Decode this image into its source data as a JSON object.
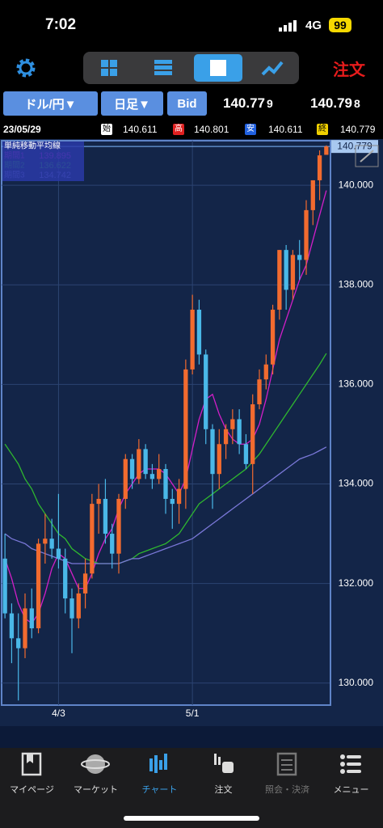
{
  "status_bar": {
    "time": "7:02",
    "network": "4G",
    "battery": "99"
  },
  "toolbar": {
    "order_button": "注文"
  },
  "selectors": {
    "pair": "ドル/円▼",
    "timeframe": "日足▼",
    "price_side": "Bid"
  },
  "quote": {
    "bid": {
      "main": "140.77",
      "pip": "9"
    },
    "ask": {
      "main": "140.79",
      "pip": "8"
    }
  },
  "info_row": {
    "date": "23/05/29",
    "open_label": "始",
    "high_label": "高",
    "low_label": "安",
    "close_label": "終"
  },
  "chart_data": {
    "type": "candlestick",
    "legend_title": "単純移動平均線",
    "categories": [
      null,
      null,
      null,
      null,
      null,
      null,
      null,
      null,
      "4/3",
      null,
      null,
      null,
      null,
      null,
      null,
      null,
      null,
      null,
      null,
      null,
      null,
      null,
      null,
      null,
      null,
      null,
      null,
      null,
      "5/1",
      null,
      null,
      null,
      null,
      null,
      null,
      null,
      null,
      null,
      null,
      null,
      null,
      null,
      null,
      null,
      null,
      null,
      null,
      null,
      null
    ],
    "open": [
      132.5,
      131.4,
      130.9,
      130.7,
      131.5,
      131.1,
      132.8,
      132.9,
      132.7,
      132.5,
      131.7,
      131.3,
      131.8,
      132.2,
      133.6,
      133.7,
      133.0,
      132.6,
      133.7,
      134.5,
      134.1,
      134.7,
      134.2,
      134.1,
      134.3,
      133.7,
      133.6,
      133.9,
      136.3,
      137.5,
      136.6,
      135.1,
      134.2,
      134.8,
      135.1,
      135.3,
      134.8,
      134.4,
      135.6,
      136.1,
      136.4,
      137.5,
      138.7,
      137.9,
      138.6,
      138.5,
      139.5,
      140.1,
      140.611
    ],
    "high": [
      133.0,
      131.6,
      131.4,
      131.8,
      131.9,
      132.9,
      133.4,
      133.3,
      133.8,
      132.7,
      131.9,
      132.0,
      132.5,
      133.8,
      134.0,
      134.1,
      133.2,
      133.8,
      134.6,
      134.6,
      134.9,
      134.8,
      134.4,
      134.6,
      134.4,
      133.9,
      134.1,
      136.5,
      137.8,
      137.7,
      136.7,
      135.2,
      135.1,
      135.2,
      135.5,
      135.5,
      135.0,
      135.8,
      136.3,
      136.6,
      137.6,
      138.7,
      138.8,
      138.7,
      138.9,
      139.7,
      140.1,
      140.7,
      140.801
    ],
    "low": [
      131.3,
      130.4,
      129.65,
      130.5,
      130.9,
      131.0,
      132.4,
      132.5,
      132.3,
      131.4,
      130.6,
      131.1,
      131.5,
      132.1,
      133.0,
      132.8,
      132.3,
      132.2,
      133.5,
      133.9,
      134.0,
      134.1,
      133.9,
      134.0,
      133.4,
      133.1,
      133.2,
      133.5,
      136.2,
      136.4,
      134.8,
      133.5,
      133.9,
      134.5,
      134.8,
      134.6,
      134.3,
      133.8,
      135.5,
      135.9,
      136.2,
      137.3,
      137.5,
      137.7,
      138.1,
      138.2,
      139.2,
      139.7,
      140.611
    ],
    "close": [
      131.4,
      130.9,
      130.7,
      131.5,
      131.1,
      132.8,
      132.9,
      132.7,
      132.5,
      131.7,
      131.3,
      131.8,
      132.2,
      133.6,
      133.7,
      133.0,
      132.6,
      133.7,
      134.5,
      134.1,
      134.7,
      134.2,
      134.1,
      134.3,
      133.7,
      133.6,
      133.9,
      136.3,
      137.5,
      136.6,
      135.1,
      134.2,
      134.8,
      135.1,
      135.3,
      134.8,
      134.4,
      135.6,
      136.1,
      136.4,
      137.5,
      138.7,
      137.9,
      138.6,
      138.5,
      139.5,
      140.1,
      140.6,
      140.779
    ],
    "up_color": "#f26b2f",
    "down_color": "#4ab8e8",
    "series": [
      {
        "name": "期間1",
        "color": "#d21fc8",
        "values": [
          132.5,
          132.1,
          131.6,
          131.3,
          131.2,
          131.4,
          131.8,
          132.3,
          132.6,
          132.5,
          132.2,
          131.9,
          131.9,
          132.2,
          132.6,
          132.9,
          133.1,
          133.5,
          133.8,
          134.0,
          134.2,
          134.3,
          134.3,
          134.3,
          134.2,
          134.0,
          133.8,
          134.1,
          134.7,
          135.3,
          135.7,
          135.8,
          135.4,
          135.1,
          134.9,
          134.8,
          134.8,
          134.9,
          135.2,
          135.7,
          136.3,
          136.9,
          137.3,
          137.7,
          138.1,
          138.4,
          138.9,
          139.4,
          139.895
        ]
      },
      {
        "name": "期間2",
        "color": "#2fb82f",
        "values": [
          134.8,
          134.6,
          134.4,
          134.1,
          133.9,
          133.6,
          133.4,
          133.2,
          133.0,
          132.9,
          132.7,
          132.6,
          132.5,
          132.45,
          132.4,
          132.4,
          132.4,
          132.4,
          132.45,
          132.5,
          132.6,
          132.65,
          132.7,
          132.75,
          132.8,
          132.9,
          133.0,
          133.2,
          133.4,
          133.6,
          133.7,
          133.8,
          133.9,
          134.0,
          134.1,
          134.2,
          134.3,
          134.45,
          134.6,
          134.8,
          135.0,
          135.2,
          135.4,
          135.6,
          135.8,
          136.0,
          136.2,
          136.4,
          136.622
        ]
      },
      {
        "name": "期間3",
        "color": "#7a78d8",
        "values": [
          133.0,
          132.9,
          132.85,
          132.8,
          132.7,
          132.65,
          132.6,
          132.55,
          132.5,
          132.45,
          132.4,
          132.4,
          132.4,
          132.4,
          132.4,
          132.4,
          132.4,
          132.4,
          132.45,
          132.5,
          132.5,
          132.55,
          132.6,
          132.65,
          132.7,
          132.75,
          132.8,
          132.85,
          132.9,
          133.0,
          133.1,
          133.2,
          133.3,
          133.4,
          133.5,
          133.6,
          133.7,
          133.8,
          133.9,
          134.0,
          134.1,
          134.2,
          134.3,
          134.4,
          134.5,
          134.55,
          134.6,
          134.67,
          134.742
        ]
      }
    ],
    "ylim": [
      129.59,
      140.83
    ],
    "yticks": [
      {
        "value": 130,
        "label": "130.000"
      },
      {
        "value": 132,
        "label": "132.000"
      },
      {
        "value": 134,
        "label": "134.000"
      },
      {
        "value": 136,
        "label": "136.000"
      },
      {
        "value": 138,
        "label": "138.000"
      },
      {
        "value": 140,
        "label": "140.000"
      }
    ],
    "grid": true
  },
  "tab_bar": [
    "マイページ",
    "マーケット",
    "チャート",
    "注文",
    "照会・決済",
    "メニュー"
  ]
}
